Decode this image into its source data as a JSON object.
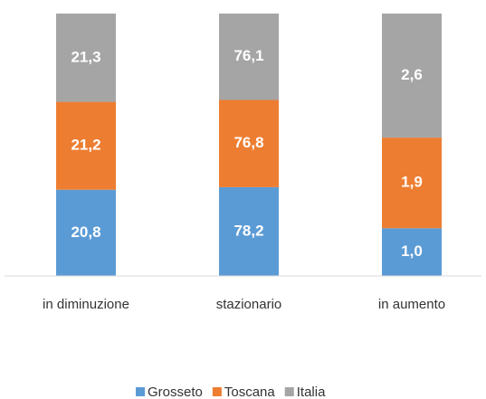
{
  "chart_data": {
    "type": "bar",
    "stacking": "percent",
    "categories": [
      "in diminuzione",
      "stazionario",
      "in aumento"
    ],
    "series": [
      {
        "name": "Grosseto",
        "color": "#5b9bd5",
        "values": [
          20.8,
          78.2,
          1.0
        ],
        "value_labels": [
          "20,8",
          "78,2",
          "1,0"
        ]
      },
      {
        "name": "Toscana",
        "color": "#ed7d31",
        "values": [
          21.2,
          76.8,
          1.9
        ],
        "value_labels": [
          "21,2",
          "76,8",
          "1,9"
        ]
      },
      {
        "name": "Italia",
        "color": "#a5a5a5",
        "values": [
          21.3,
          76.1,
          2.6
        ],
        "value_labels": [
          "21,3",
          "76,1",
          "2,6"
        ]
      }
    ],
    "legend": "bottom"
  }
}
